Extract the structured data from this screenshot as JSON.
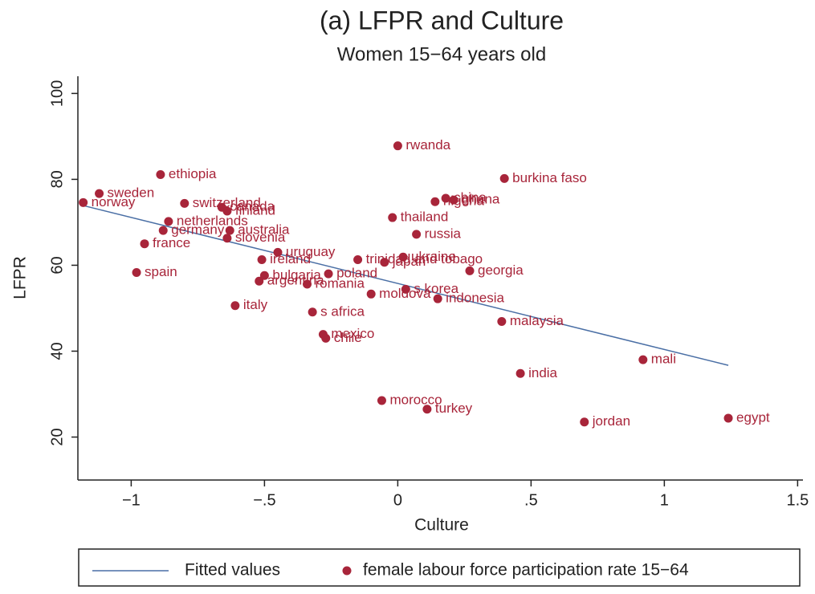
{
  "chart_data": {
    "type": "scatter",
    "title": "(a) LFPR and Culture",
    "subtitle": "Women 15−64 years old",
    "x_label": "Culture",
    "y_label": "LFPR",
    "xlim": [
      -1.2,
      1.52
    ],
    "ylim": [
      10,
      104
    ],
    "xticks": [
      {
        "value": -1,
        "label": "−1"
      },
      {
        "value": -0.5,
        "label": "−.5"
      },
      0,
      {
        "value": 0.5,
        "label": ".5"
      },
      1,
      1.5
    ],
    "yticks": [
      20,
      40,
      60,
      80,
      100
    ],
    "legend": "bottom",
    "series": [
      {
        "name": "Fitted values",
        "type": "line",
        "color": "#4a6fa5",
        "x": [
          -1.18,
          1.24
        ],
        "values": [
          73.9,
          36.7
        ]
      },
      {
        "name": "female labour force participation rate 15−64",
        "type": "scatter",
        "color": "#a8253a",
        "labels": [
          "norway",
          "sweden",
          "ethiopia",
          "switzerland",
          "canada",
          "finland",
          "netherlands",
          "germany",
          "australia",
          "france",
          "slovenia",
          "spain",
          "uruguay",
          "ireland",
          "bulgaria",
          "argentina",
          "romania",
          "poland",
          "trinidad and tobago",
          "japan",
          "ukraine",
          "moldova",
          "s korea",
          "indonesia",
          "s africa",
          "italy",
          "mexico",
          "chile",
          "rwanda",
          "burkina faso",
          "china",
          "nigeria",
          "ghana",
          "thailand",
          "russia",
          "georgia",
          "malaysia",
          "india",
          "mali",
          "morocco",
          "turkey",
          "jordan",
          "egypt"
        ],
        "x": [
          -1.18,
          -1.12,
          -0.89,
          -0.8,
          -0.66,
          -0.64,
          -0.86,
          -0.88,
          -0.63,
          -0.95,
          -0.64,
          -0.98,
          -0.45,
          -0.51,
          -0.5,
          -0.52,
          -0.34,
          -0.26,
          -0.15,
          -0.05,
          0.02,
          -0.1,
          0.03,
          0.15,
          -0.32,
          -0.61,
          -0.28,
          -0.27,
          0.0,
          0.4,
          0.18,
          0.14,
          0.21,
          -0.02,
          0.07,
          0.27,
          0.39,
          0.46,
          0.92,
          -0.06,
          0.11,
          0.7,
          1.24
        ],
        "values": [
          74.6,
          76.7,
          81.1,
          74.4,
          73.5,
          72.6,
          70.2,
          68.1,
          68.1,
          65.0,
          66.3,
          58.3,
          63.0,
          61.3,
          57.6,
          56.3,
          55.6,
          58.0,
          61.3,
          60.7,
          61.9,
          53.3,
          54.4,
          52.2,
          49.1,
          50.6,
          43.9,
          43.0,
          87.8,
          80.2,
          75.6,
          74.8,
          75.2,
          71.1,
          67.2,
          58.7,
          46.9,
          34.8,
          38.0,
          28.5,
          26.5,
          23.5,
          24.4
        ]
      }
    ]
  }
}
